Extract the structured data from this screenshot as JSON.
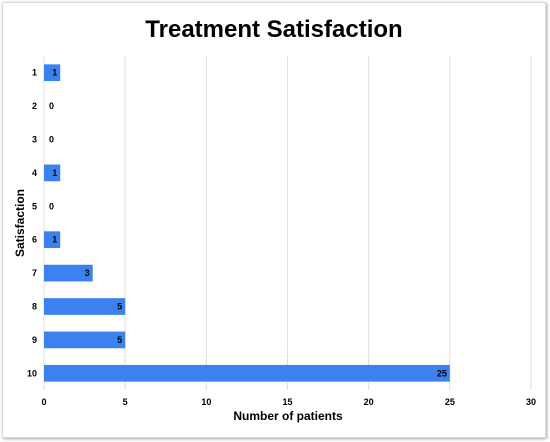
{
  "chart_data": {
    "type": "bar",
    "orientation": "horizontal",
    "title": "Treatment Satisfaction",
    "xlabel": "Number of patients",
    "ylabel": "Satisfaction",
    "categories": [
      "1",
      "2",
      "3",
      "4",
      "5",
      "6",
      "7",
      "8",
      "9",
      "10"
    ],
    "values": [
      1,
      0,
      0,
      1,
      0,
      1,
      3,
      5,
      5,
      25
    ],
    "value_labels": [
      "1",
      "0",
      "0",
      "1",
      "0",
      "1",
      "3",
      "5",
      "5",
      "25"
    ],
    "xlim": [
      0,
      30
    ],
    "xticks": [
      "0",
      "5",
      "10",
      "15",
      "20",
      "25",
      "30"
    ],
    "grid": true,
    "legend": "none",
    "bar_color": "#3b82f0"
  }
}
